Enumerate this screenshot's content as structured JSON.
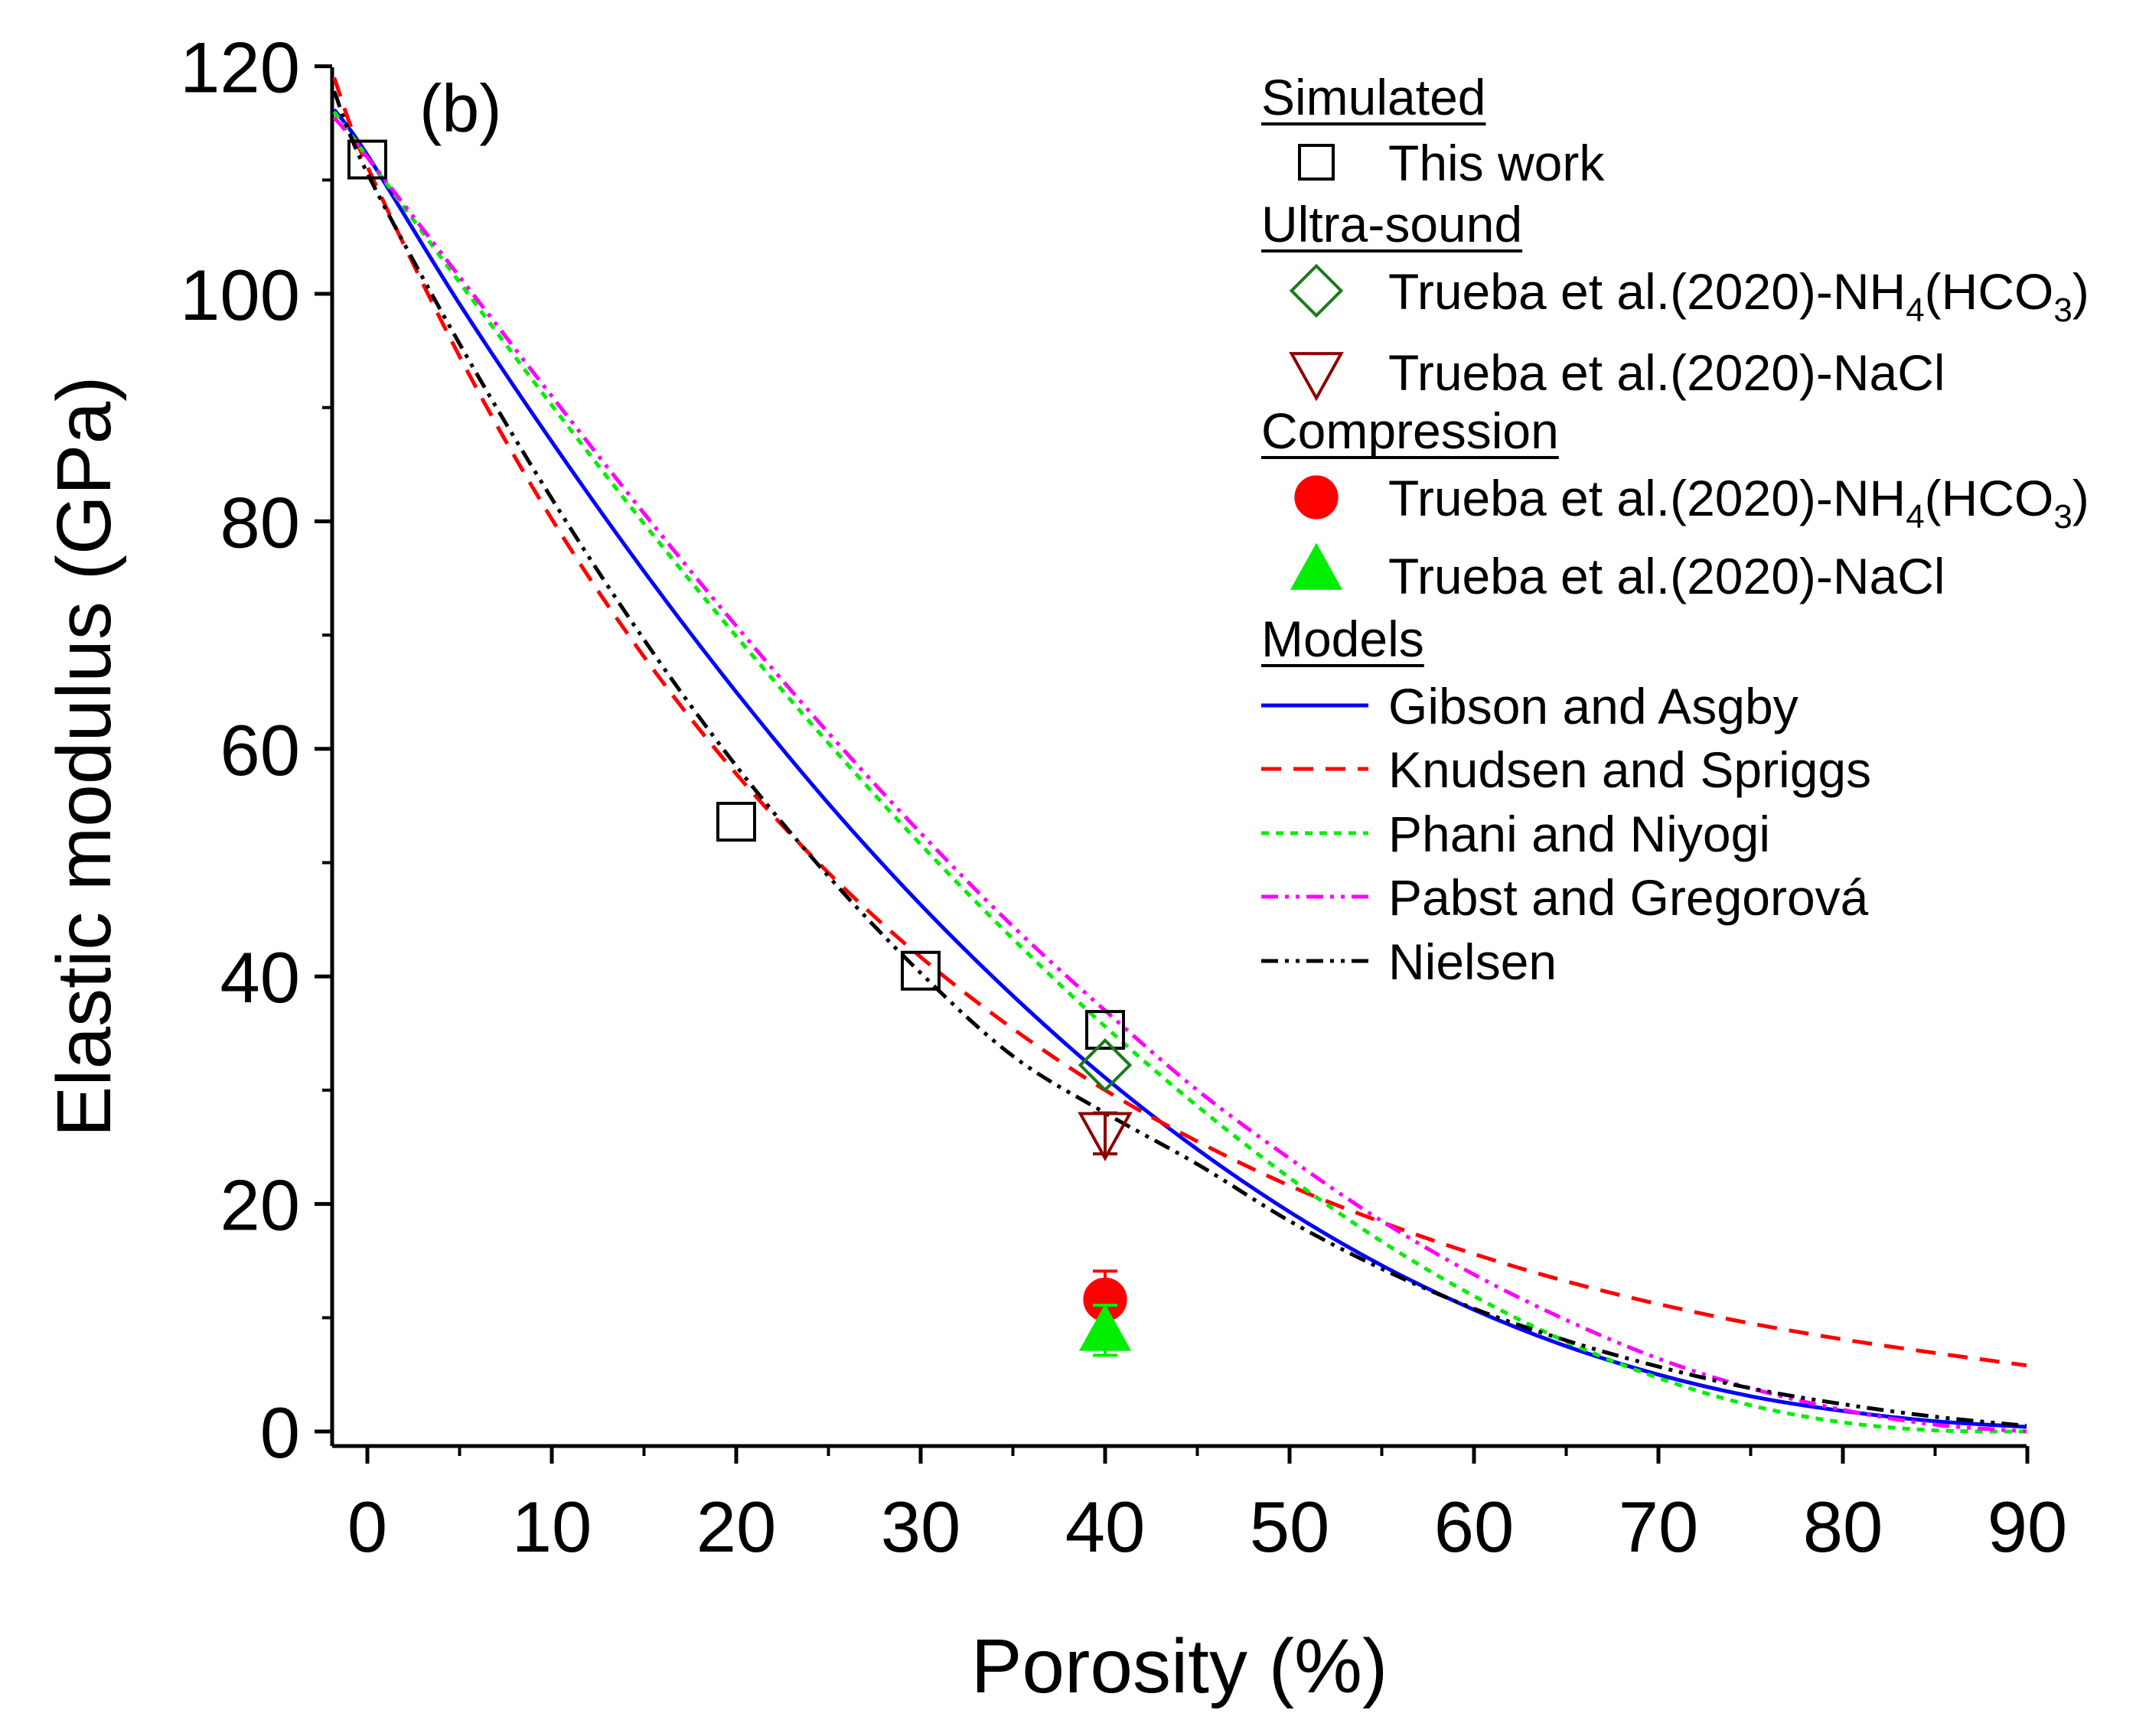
{
  "chart_data": {
    "type": "scatter",
    "panel_label": "(b)",
    "xlabel": "Porosity (%)",
    "ylabel": "Elastic modulus (GPa)",
    "xlim": [
      -1.8,
      90
    ],
    "ylim": [
      0,
      120
    ],
    "xticks": [
      "0",
      "10",
      "20",
      "30",
      "40",
      "50",
      "60",
      "70",
      "80",
      "90"
    ],
    "yticks": [
      "0",
      "20",
      "40",
      "60",
      "80",
      "100",
      "120"
    ],
    "legend_position": "top-right",
    "legend_groups": {
      "simulated": "Simulated",
      "ultrasound": "Ultra-sound",
      "compression": "Compression",
      "models": "Models"
    },
    "series": [
      {
        "name": "This work",
        "group": "simulated",
        "marker": "open-square",
        "color": "#000000",
        "points": [
          {
            "x": 0,
            "y": 111.8
          },
          {
            "x": 20,
            "y": 53.6
          },
          {
            "x": 30,
            "y": 40.5
          },
          {
            "x": 40,
            "y": 35.3
          }
        ]
      },
      {
        "name_main": "Trueba et al.(2020)-NH",
        "sub1": "4",
        "name_mid": "(HCO",
        "sub2": "3",
        "name_end": ")",
        "group": "ultrasound",
        "marker": "open-diamond",
        "color": "#1a7a1a",
        "points": [
          {
            "x": 40,
            "y": 32.2
          }
        ]
      },
      {
        "name": "Trueba et al.(2020)-NaCl",
        "group": "ultrasound",
        "marker": "open-triangle-down",
        "color": "#8b0000",
        "points": [
          {
            "x": 40,
            "y": 26.2,
            "err": 1.8
          }
        ]
      },
      {
        "name_main": "Trueba et al.(2020)-NH",
        "sub1": "4",
        "name_mid": "(HCO",
        "sub2": "3",
        "name_end": ")",
        "group": "compression",
        "marker": "filled-circle",
        "color": "#ff0000",
        "points": [
          {
            "x": 40,
            "y": 11.6,
            "err": 2.5
          }
        ]
      },
      {
        "name": "Trueba et al.(2020)-NaCl",
        "group": "compression",
        "marker": "filled-triangle-up",
        "color": "#00ee00",
        "points": [
          {
            "x": 40,
            "y": 8.9,
            "err": 2.2
          }
        ]
      }
    ],
    "models": [
      {
        "name": "Gibson and Asgby",
        "color": "#0000ff",
        "dash": "solid",
        "x": [
          -1.8,
          0,
          5,
          10,
          15,
          20,
          25,
          30,
          35,
          40,
          45,
          50,
          55,
          60,
          65,
          70,
          75,
          80,
          85,
          90
        ],
        "y": [
          116.2,
          112.2,
          99.1,
          87.0,
          75.6,
          65.0,
          55.2,
          46.3,
          38.3,
          31.1,
          24.8,
          19.3,
          14.6,
          10.7,
          7.5,
          5.0,
          3.1,
          1.8,
          0.9,
          0.4
        ]
      },
      {
        "name": "Knudsen and Spriggs",
        "color": "#ff0000",
        "dash": "dash",
        "x": [
          -1.8,
          0,
          5,
          10,
          15,
          20,
          25,
          30,
          35,
          40,
          45,
          50,
          55,
          60,
          65,
          70,
          75,
          80,
          85,
          90
        ],
        "y": [
          119.0,
          111.2,
          94.5,
          80.2,
          68.1,
          57.8,
          49.1,
          41.7,
          35.4,
          30.0,
          25.5,
          21.6,
          18.4,
          15.6,
          13.2,
          11.2,
          9.5,
          8.1,
          6.9,
          5.8
        ]
      },
      {
        "name": "Phani and Niyogi",
        "color": "#00ee00",
        "dash": "short-dash",
        "x": [
          -1.8,
          0,
          5,
          10,
          15,
          20,
          25,
          30,
          35,
          40,
          45,
          50,
          55,
          60,
          65,
          70,
          75,
          80,
          85,
          90
        ],
        "y": [
          116.0,
          112.0,
          101.0,
          90.2,
          79.8,
          69.9,
          60.5,
          51.6,
          43.3,
          35.6,
          28.6,
          22.3,
          16.7,
          11.9,
          7.9,
          4.7,
          2.3,
          0.8,
          0.1,
          0.0
        ]
      },
      {
        "name": "Pabst and Gregorová",
        "color": "#ff00ff",
        "dash": "dash-dot-dot",
        "x": [
          -1.8,
          0,
          5,
          10,
          15,
          20,
          25,
          30,
          35,
          40,
          45,
          50,
          55,
          60,
          65,
          70,
          75,
          80,
          85,
          90
        ],
        "y": [
          115.5,
          112.0,
          101.5,
          91.0,
          80.7,
          70.8,
          61.4,
          52.6,
          44.4,
          37.0,
          30.0,
          24.0,
          18.5,
          13.8,
          9.8,
          6.4,
          3.8,
          1.9,
          0.6,
          0.0
        ]
      },
      {
        "name": "Nielsen",
        "color": "#000000",
        "dash": "dash-dot-dot",
        "x": [
          -1.8,
          0,
          5,
          10,
          15,
          20,
          25,
          30,
          35,
          40,
          45,
          50,
          55,
          60,
          65,
          70,
          75,
          80,
          85,
          90
        ],
        "y": [
          117.8,
          110.6,
          95.6,
          82.0,
          69.6,
          58.5,
          48.8,
          40.3,
          33.0,
          28.0,
          23.5,
          18.5,
          14.3,
          10.8,
          8.0,
          5.7,
          3.8,
          2.4,
          1.3,
          0.5
        ]
      }
    ]
  }
}
